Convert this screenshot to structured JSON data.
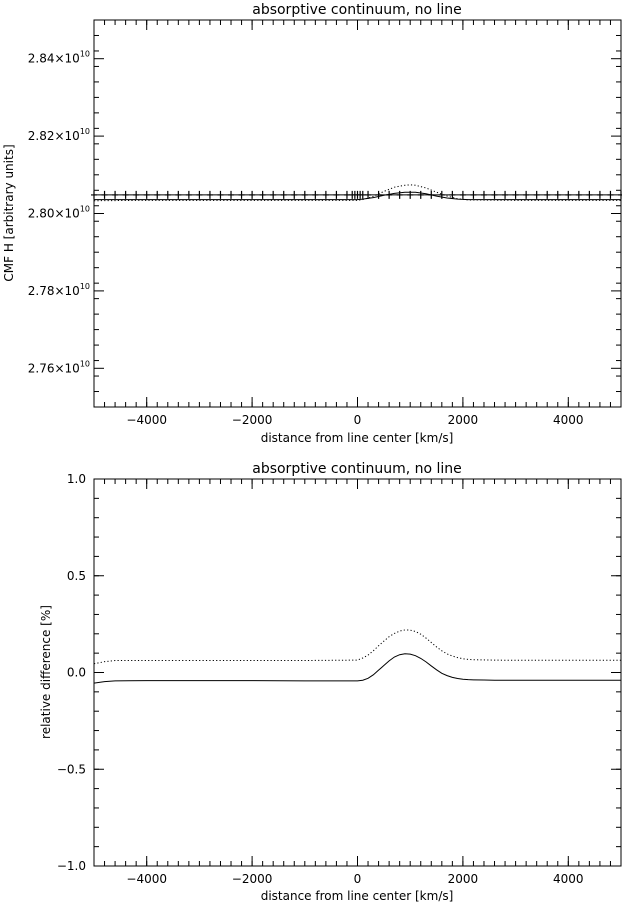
{
  "chart_data": [
    {
      "type": "line",
      "title": "absorptive continuum, no line",
      "xlabel": "distance from line center [km/s]",
      "ylabel": "CMF H [arbitrary units]",
      "xlim": [
        -5000,
        5000
      ],
      "ylim": [
        27500000000.0,
        28500000000.0
      ],
      "grid": false,
      "legend": "none",
      "x_ticks": [
        -4000,
        -2000,
        0,
        2000,
        4000
      ],
      "x_tick_labels": [
        "−4000",
        "−2000",
        "0",
        "2000",
        "4000"
      ],
      "y_ticks": [
        27600000000.0,
        27800000000.0,
        28000000000.0,
        28200000000.0,
        28400000000.0
      ],
      "y_tick_labels": [
        {
          "mantissa": "2.76×10",
          "exponent": "10"
        },
        {
          "mantissa": "2.78×10",
          "exponent": "10"
        },
        {
          "mantissa": "2.80×10",
          "exponent": "10"
        },
        {
          "mantissa": "2.82×10",
          "exponent": "10"
        },
        {
          "mantissa": "2.84×10",
          "exponent": "10"
        }
      ],
      "series": [
        {
          "style": "solid",
          "marker": "plus",
          "x": [
            -5000,
            -4800,
            -4600,
            -4400,
            -4200,
            -4000,
            -3800,
            -3600,
            -3400,
            -3200,
            -3000,
            -2800,
            -2600,
            -2400,
            -2200,
            -2000,
            -1800,
            -1600,
            -1400,
            -1200,
            -1000,
            -800,
            -600,
            -400,
            -200,
            -100,
            -50,
            0,
            50,
            100,
            200,
            400,
            600,
            800,
            1000,
            1200,
            1400,
            1600,
            1800,
            2000,
            2200,
            2400,
            2600,
            2800,
            3000,
            3200,
            3400,
            3600,
            3800,
            4000,
            4200,
            4400,
            4600,
            4800,
            5000
          ],
          "y": [
            28048000000.0,
            28048000000.0,
            28048000000.0,
            28048000000.0,
            28048000000.0,
            28048000000.0,
            28048000000.0,
            28048000000.0,
            28048000000.0,
            28048000000.0,
            28048000000.0,
            28048000000.0,
            28048000000.0,
            28048000000.0,
            28048000000.0,
            28048000000.0,
            28048000000.0,
            28048000000.0,
            28048000000.0,
            28048000000.0,
            28048000000.0,
            28048000000.0,
            28048000000.0,
            28048000000.0,
            28048000000.0,
            28048000000.0,
            28048000000.0,
            28048000000.0,
            28048000000.0,
            28048000000.0,
            28048000000.0,
            28048000000.0,
            28048000000.0,
            28048000000.0,
            28048000000.0,
            28048000000.0,
            28048000000.0,
            28048000000.0,
            28048000000.0,
            28048000000.0,
            28048000000.0,
            28048000000.0,
            28048000000.0,
            28048000000.0,
            28048000000.0,
            28048000000.0,
            28048000000.0,
            28048000000.0,
            28048000000.0,
            28048000000.0,
            28048000000.0,
            28048000000.0,
            28048000000.0,
            28048000000.0,
            28048000000.0
          ]
        },
        {
          "style": "dotted",
          "x": [
            -5000,
            -4000,
            -3000,
            -2000,
            -1000,
            0,
            100,
            300,
            500,
            700,
            900,
            1000,
            1100,
            1300,
            1500,
            1700,
            1900,
            2100,
            3000,
            4000,
            5000
          ],
          "y": [
            28033000000.0,
            28034000000.0,
            28034000000.0,
            28034000000.0,
            28034000000.0,
            28034000000.0,
            28036000000.0,
            28044000000.0,
            28057000000.0,
            28068000000.0,
            28073000000.0,
            28074000000.0,
            28073000000.0,
            28066000000.0,
            28055000000.0,
            28045000000.0,
            28038000000.0,
            28035000000.0,
            28034000000.0,
            28034000000.0,
            28034000000.0
          ]
        },
        {
          "style": "solid",
          "x": [
            -5000,
            -4000,
            -3000,
            -2000,
            -1000,
            0,
            100,
            300,
            500,
            700,
            900,
            1000,
            1100,
            1300,
            1500,
            1700,
            1900,
            2100,
            3000,
            4000,
            5000
          ],
          "y": [
            28036000000.0,
            28036000000.0,
            28036000000.0,
            28036000000.0,
            28036000000.0,
            28036000000.0,
            28037000000.0,
            28041000000.0,
            28047000000.0,
            28052000000.0,
            28055000000.0,
            28055000000.0,
            28055000000.0,
            28051000000.0,
            28045000000.0,
            28040000000.0,
            28037000000.0,
            28036000000.0,
            28036000000.0,
            28036000000.0,
            28036000000.0
          ]
        }
      ]
    },
    {
      "type": "line",
      "title": "absorptive continuum, no line",
      "xlabel": "distance from line center [km/s]",
      "ylabel": "relative difference [%]",
      "xlim": [
        -5000,
        5000
      ],
      "ylim": [
        -1.0,
        1.0
      ],
      "grid": false,
      "legend": "none",
      "x_ticks": [
        -4000,
        -2000,
        0,
        2000,
        4000
      ],
      "x_tick_labels": [
        "−4000",
        "−2000",
        "0",
        "2000",
        "4000"
      ],
      "y_ticks": [
        -1.0,
        -0.5,
        0.0,
        0.5,
        1.0
      ],
      "y_tick_labels": [
        "−1.0",
        "−0.5",
        "0.0",
        "0.5",
        "1.0"
      ],
      "series": [
        {
          "style": "dotted",
          "x": [
            -5000,
            -4800,
            -4600,
            -4000,
            -3000,
            -2000,
            -1000,
            0,
            100,
            200,
            300,
            400,
            500,
            600,
            700,
            800,
            900,
            1000,
            1100,
            1200,
            1300,
            1400,
            1500,
            1600,
            1700,
            1800,
            1900,
            2000,
            2100,
            2200,
            2400,
            2600,
            3000,
            3500,
            4000,
            4500,
            5000
          ],
          "y": [
            0.045,
            0.056,
            0.062,
            0.062,
            0.062,
            0.062,
            0.062,
            0.064,
            0.075,
            0.09,
            0.112,
            0.138,
            0.162,
            0.185,
            0.202,
            0.214,
            0.22,
            0.219,
            0.212,
            0.198,
            0.178,
            0.155,
            0.132,
            0.112,
            0.096,
            0.085,
            0.077,
            0.071,
            0.068,
            0.066,
            0.065,
            0.064,
            0.063,
            0.063,
            0.063,
            0.063,
            0.063
          ]
        },
        {
          "style": "solid",
          "x": [
            -5000,
            -4800,
            -4600,
            -4000,
            -3000,
            -2000,
            -1000,
            0,
            100,
            200,
            300,
            400,
            500,
            600,
            700,
            800,
            900,
            1000,
            1100,
            1200,
            1300,
            1400,
            1500,
            1600,
            1700,
            1800,
            1900,
            2000,
            2100,
            2200,
            2400,
            2600,
            3000,
            3500,
            4000,
            4500,
            5000
          ],
          "y": [
            -0.055,
            -0.047,
            -0.043,
            -0.042,
            -0.042,
            -0.042,
            -0.043,
            -0.043,
            -0.04,
            -0.03,
            -0.012,
            0.012,
            0.036,
            0.06,
            0.08,
            0.092,
            0.097,
            0.095,
            0.087,
            0.073,
            0.055,
            0.034,
            0.014,
            -0.004,
            -0.016,
            -0.025,
            -0.031,
            -0.035,
            -0.037,
            -0.038,
            -0.039,
            -0.04,
            -0.04,
            -0.04,
            -0.04,
            -0.04,
            -0.04
          ]
        }
      ]
    }
  ]
}
